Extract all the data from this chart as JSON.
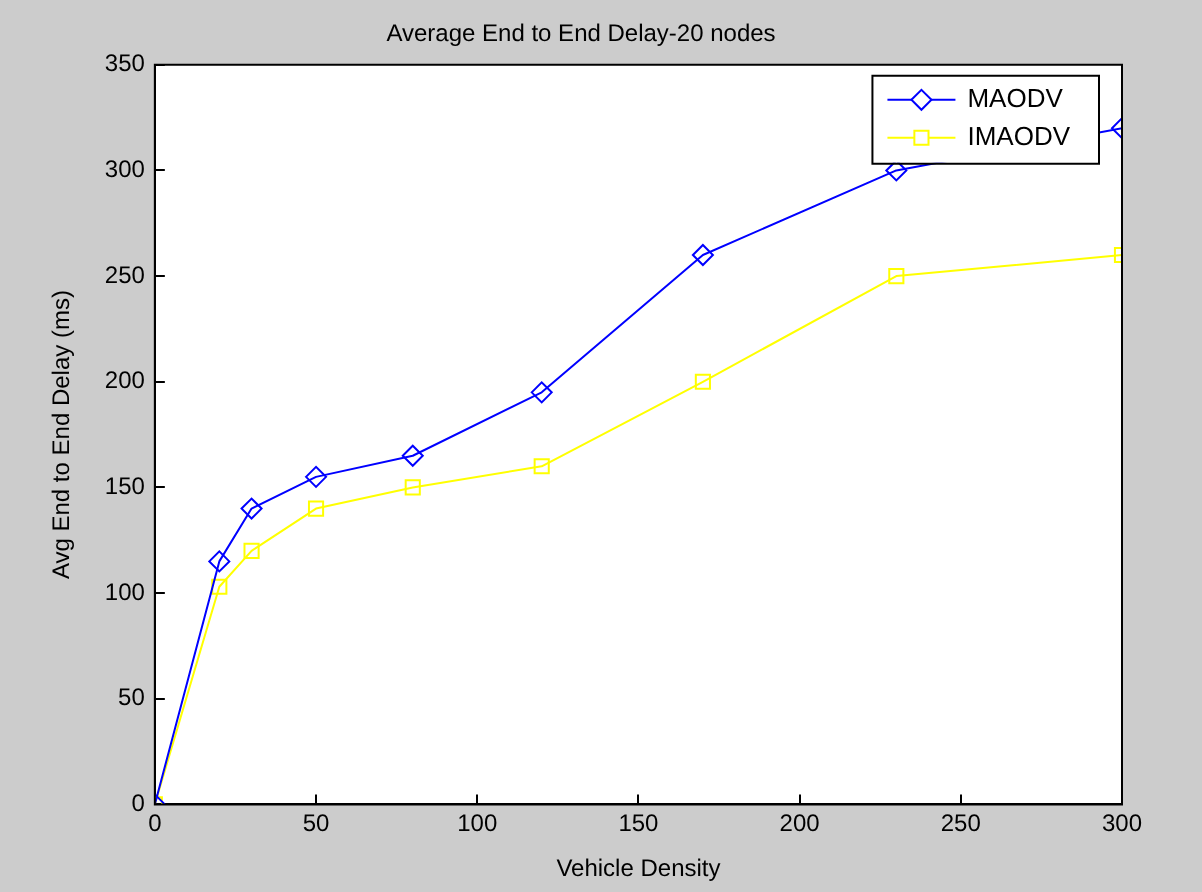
{
  "chart_data": {
    "type": "line",
    "title": "Average End to End Delay-20 nodes",
    "xlabel": "Vehicle Density",
    "ylabel": "Avg End to End Delay (ms)",
    "x": [
      0,
      20,
      30,
      50,
      80,
      120,
      170,
      230,
      300
    ],
    "series": [
      {
        "name": "MAODV",
        "color": "#0000ff",
        "marker": "diamond",
        "values": [
          0,
          115,
          140,
          155,
          165,
          195,
          260,
          300,
          320
        ]
      },
      {
        "name": "IMAODV",
        "color": "#ffff00",
        "marker": "square",
        "values": [
          0,
          103,
          120,
          140,
          150,
          160,
          200,
          250,
          260
        ]
      }
    ],
    "xlim": [
      0,
      300
    ],
    "xticks": [
      0,
      50,
      100,
      150,
      200,
      250,
      300
    ],
    "ylim": [
      0,
      350
    ],
    "yticks": [
      0,
      50,
      100,
      150,
      200,
      250,
      300,
      350
    ],
    "grid": false,
    "legend": "top right",
    "line_style": "solid"
  }
}
